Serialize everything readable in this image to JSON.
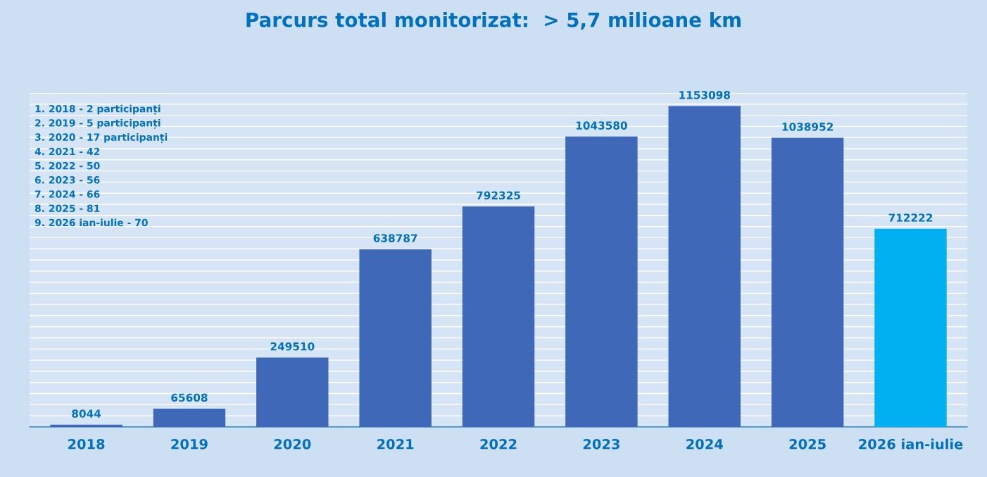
{
  "chart_data": {
    "type": "bar",
    "title": "Parcurs total monitorizat:  > 5,7 milioane km",
    "categories": [
      "2018",
      "2019",
      "2020",
      "2021",
      "2022",
      "2023",
      "2024",
      "2025",
      "2026 ian-iulie"
    ],
    "values": [
      8044,
      65608,
      249510,
      638787,
      792325,
      1043580,
      1153098,
      1038952,
      712222
    ],
    "colors": [
      "#3f69b8",
      "#3f69b8",
      "#3f69b8",
      "#3f69b8",
      "#3f69b8",
      "#3f69b8",
      "#3f69b8",
      "#3f69b8",
      "#00b0f0"
    ],
    "data_labels": true,
    "ylim": [
      0,
      1200000
    ],
    "yticks": [
      {
        "value": 0,
        "label": null
      },
      {
        "value": 40000,
        "label": null
      },
      {
        "value": 80000,
        "label": null
      },
      {
        "value": 120000,
        "label": null
      },
      {
        "value": 160000,
        "label": null
      },
      {
        "value": 200000,
        "label": null
      },
      {
        "value": 240000,
        "label": null
      },
      {
        "value": 280000,
        "label": null
      },
      {
        "value": 320000,
        "label": null
      },
      {
        "value": 360000,
        "label": null
      },
      {
        "value": 400000,
        "label": null
      },
      {
        "value": 440000,
        "label": null
      },
      {
        "value": 480000,
        "label": null
      },
      {
        "value": 520000,
        "label": null
      },
      {
        "value": 560000,
        "label": null
      },
      {
        "value": 600000,
        "label": null
      },
      {
        "value": 640000,
        "label": null
      },
      {
        "value": 680000,
        "label": null
      },
      {
        "value": 720000,
        "label": null
      },
      {
        "value": 760000,
        "label": null
      },
      {
        "value": 800000,
        "label": null
      },
      {
        "value": 840000,
        "label": null
      },
      {
        "value": 880000,
        "label": null
      },
      {
        "value": 920000,
        "label": null
      },
      {
        "value": 960000,
        "label": null
      },
      {
        "value": 1000000,
        "label": null
      },
      {
        "value": 1040000,
        "label": null
      },
      {
        "value": 1080000,
        "label": null
      },
      {
        "value": 1120000,
        "label": null
      },
      {
        "value": 1160000,
        "label": null
      },
      {
        "value": 1200000,
        "label": null
      }
    ],
    "grid": "y",
    "tick_labels": "x",
    "annotations": [
      "1. 2018 - 2 participanți",
      "2. 2019 - 5 participanți",
      "3. 2020 - 17 participanți",
      "4. 2021 - 42",
      "5. 2022 - 50",
      "6. 2023 - 56",
      "7. 2024 - 66",
      "8. 2025 - 81",
      "9. 2026 ian-iulie - 70"
    ]
  }
}
